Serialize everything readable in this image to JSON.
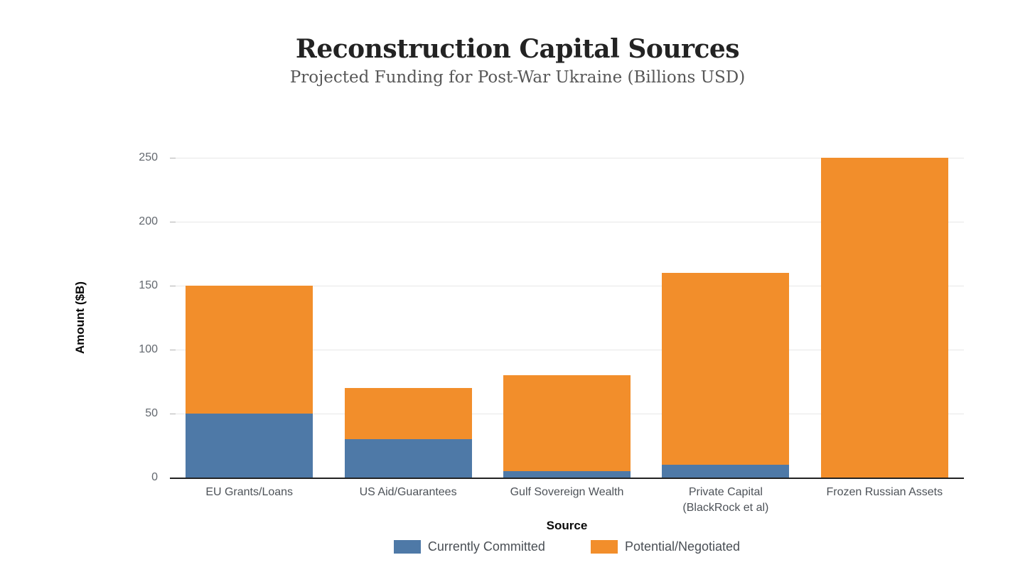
{
  "chart_data": {
    "type": "bar",
    "stacked": true,
    "title": "Reconstruction Capital Sources",
    "subtitle": "Projected Funding for Post-War Ukraine (Billions USD)",
    "categories": [
      "EU Grants/Loans",
      "US Aid/Guarantees",
      "Gulf Sovereign Wealth",
      "Private Capital\n(BlackRock et al)",
      "Frozen Russian Assets"
    ],
    "series": [
      {
        "name": "Currently Committed",
        "color": "#4E79A7",
        "values": [
          50,
          30,
          5,
          10,
          0
        ]
      },
      {
        "name": "Potential/Negotiated",
        "color": "#F28E2B",
        "values": [
          100,
          40,
          75,
          150,
          250
        ]
      }
    ],
    "stacked_totals": [
      150,
      70,
      80,
      160,
      250
    ],
    "xlabel": "Source",
    "ylabel": "Amount ($B)",
    "ylim": [
      0,
      250
    ],
    "yticks": [
      0,
      50,
      100,
      150,
      200,
      250
    ],
    "grid": "horizontal-only",
    "legend_position": "bottom-center",
    "colors": {
      "committed": "#4E79A7",
      "potential": "#F28E2B",
      "axis_line": "#222222",
      "gridline": "#e8e8e8",
      "tick_label": "#63686f",
      "category_label": "#4d5258",
      "title": "#232323",
      "subtitle": "#575757",
      "background": "#ffffff"
    }
  }
}
